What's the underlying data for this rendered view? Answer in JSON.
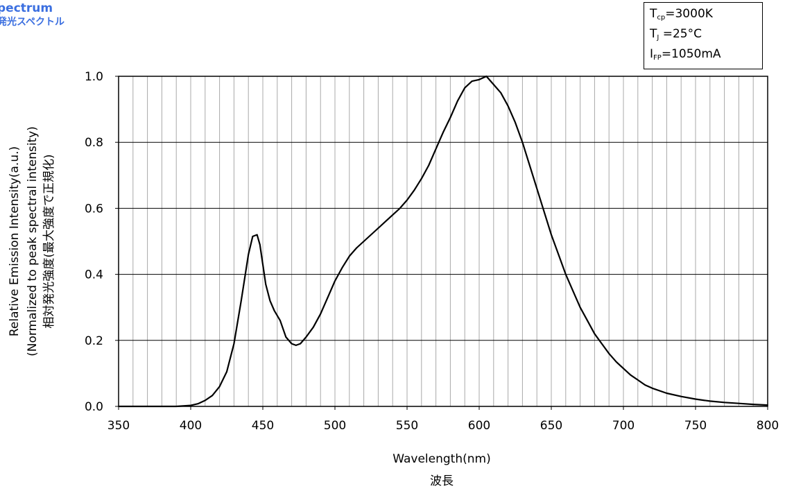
{
  "header": {
    "title_line1": "pectrum",
    "title_line2": "発光スペクトル"
  },
  "conditions": {
    "tcp_symbol": "T",
    "tcp_sub": "cp",
    "tcp_value": "=3000K",
    "tj_symbol": "T",
    "tj_sub": "J",
    "tj_value": " =25°C",
    "ifp_symbol": "I",
    "ifp_sub": "FP",
    "ifp_value": "=1050mA"
  },
  "chart_data": {
    "type": "line",
    "xlabel": "Wavelength(nm)",
    "xlabel_jp": "波長",
    "ylabel_line1": "Relative Emission Intensity(a.u.)",
    "ylabel_line2": "(Normalized to peak spectral intensity)",
    "ylabel_line3": "相対発光強度(最大強度で正規化)",
    "xlim": [
      350,
      800
    ],
    "ylim": [
      0,
      1.0
    ],
    "x_ticks": [
      "350",
      "400",
      "450",
      "500",
      "550",
      "600",
      "650",
      "700",
      "750",
      "800"
    ],
    "y_ticks": [
      "0.0",
      "0.2",
      "0.4",
      "0.6",
      "0.8",
      "1.0"
    ],
    "grid": true,
    "series": [
      {
        "x": [
          350,
          360,
          370,
          380,
          390,
          400,
          405,
          410,
          415,
          420,
          425,
          430,
          435,
          440,
          443,
          446,
          448,
          450,
          452,
          455,
          458,
          462,
          466,
          470,
          473,
          476,
          480,
          485,
          490,
          495,
          500,
          505,
          510,
          515,
          520,
          525,
          530,
          535,
          540,
          545,
          550,
          555,
          560,
          565,
          570,
          575,
          580,
          585,
          590,
          595,
          600,
          605,
          610,
          615,
          620,
          625,
          630,
          635,
          640,
          645,
          650,
          655,
          660,
          665,
          670,
          675,
          680,
          685,
          690,
          695,
          700,
          705,
          710,
          715,
          720,
          730,
          740,
          750,
          760,
          770,
          780,
          790,
          800
        ],
        "y": [
          0.0,
          0.0,
          0.0,
          0.0,
          0.0,
          0.003,
          0.008,
          0.018,
          0.033,
          0.06,
          0.105,
          0.19,
          0.32,
          0.46,
          0.515,
          0.52,
          0.49,
          0.43,
          0.37,
          0.32,
          0.29,
          0.26,
          0.21,
          0.19,
          0.185,
          0.19,
          0.21,
          0.24,
          0.28,
          0.33,
          0.38,
          0.42,
          0.455,
          0.48,
          0.5,
          0.52,
          0.54,
          0.56,
          0.58,
          0.6,
          0.625,
          0.655,
          0.69,
          0.73,
          0.78,
          0.83,
          0.875,
          0.925,
          0.965,
          0.985,
          0.99,
          1.0,
          0.975,
          0.95,
          0.91,
          0.86,
          0.8,
          0.73,
          0.66,
          0.59,
          0.52,
          0.46,
          0.4,
          0.35,
          0.3,
          0.26,
          0.22,
          0.19,
          0.16,
          0.135,
          0.115,
          0.095,
          0.08,
          0.065,
          0.055,
          0.04,
          0.03,
          0.022,
          0.016,
          0.012,
          0.009,
          0.006,
          0.004
        ]
      }
    ]
  }
}
